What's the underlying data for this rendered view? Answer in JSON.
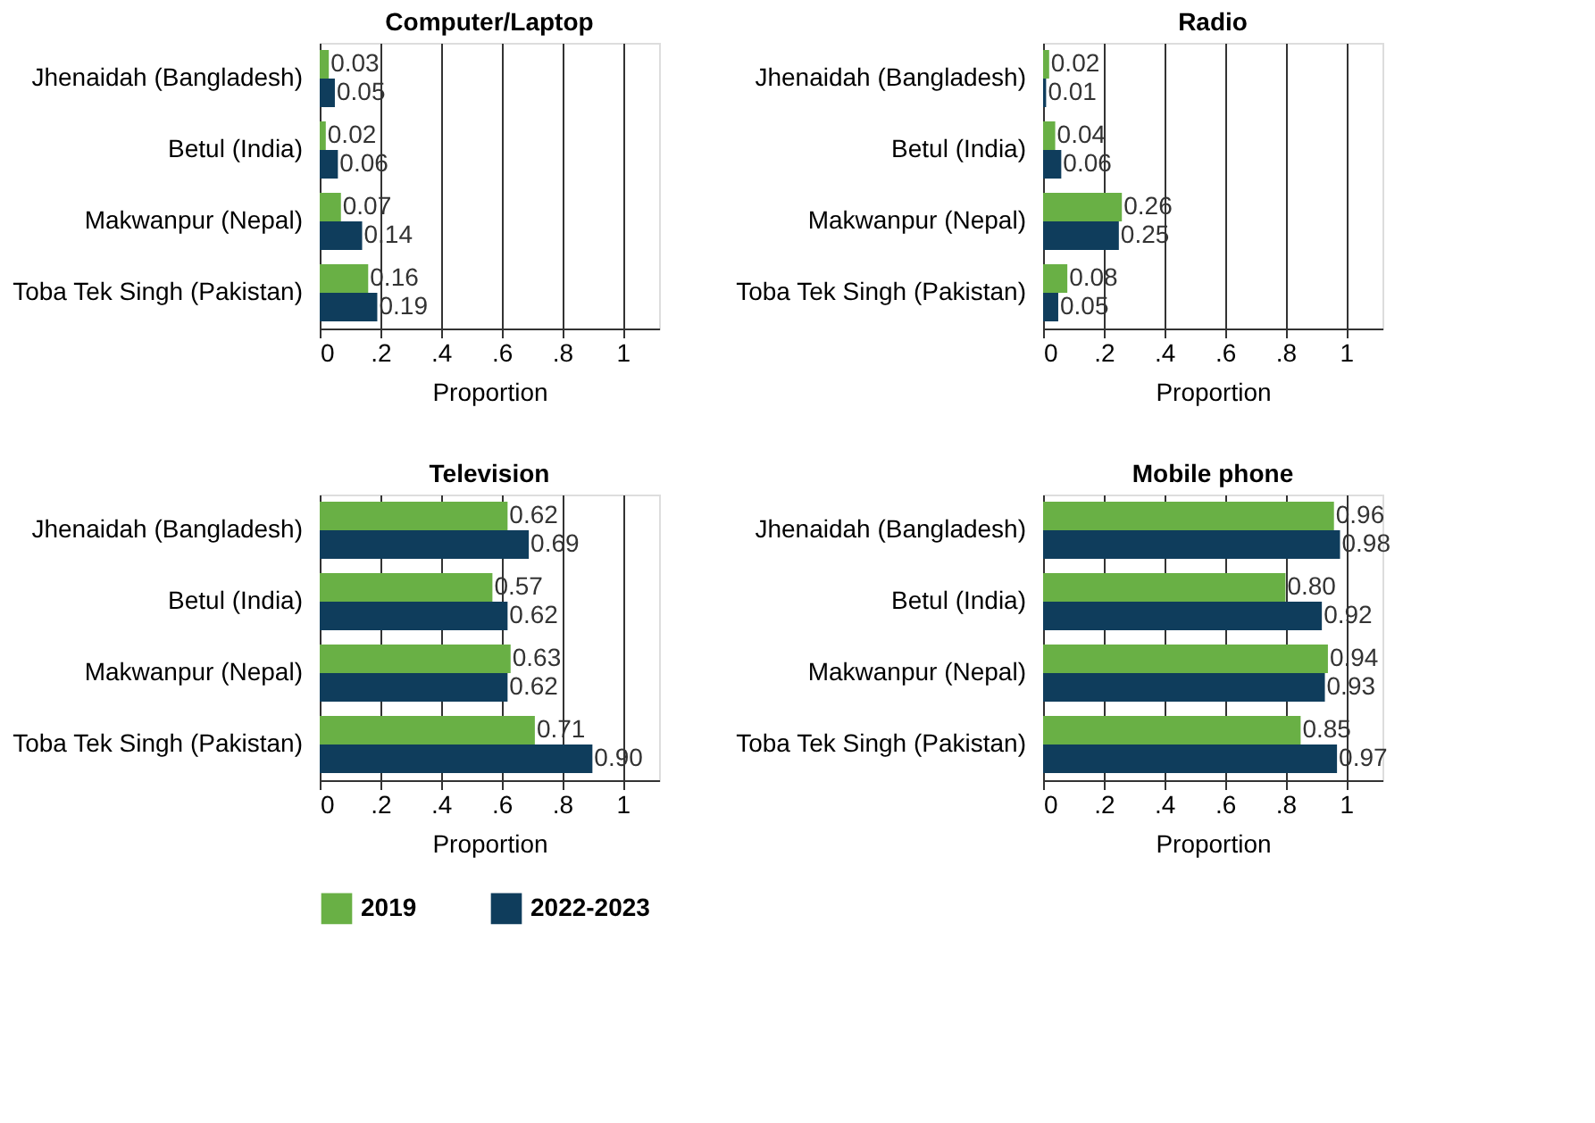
{
  "chart_data": [
    {
      "type": "bar",
      "orientation": "horizontal",
      "title": "Computer/Laptop",
      "xlabel": "Proportion",
      "categories": [
        "Jhenaidah (Bangladesh)",
        "Betul (India)",
        "Makwanpur (Nepal)",
        "Toba Tek Singh (Pakistan)"
      ],
      "series": [
        {
          "name": "2019",
          "color": "#69b045",
          "values": [
            0.03,
            0.02,
            0.07,
            0.16
          ],
          "value_labels": [
            "0.03",
            "0.02",
            "0.07",
            "0.16"
          ]
        },
        {
          "name": "2022-2023",
          "color": "#0f3d5c",
          "values": [
            0.05,
            0.06,
            0.14,
            0.19
          ],
          "value_labels": [
            "0.05",
            "0.06",
            "0.14",
            "0.19"
          ]
        }
      ],
      "xlim": [
        0,
        1.12
      ],
      "xticks": [
        {
          "value": 0,
          "label": "0"
        },
        {
          "value": 0.2,
          "label": ".2"
        },
        {
          "value": 0.4,
          "label": ".4"
        },
        {
          "value": 0.6,
          "label": ".6"
        },
        {
          "value": 0.8,
          "label": ".8"
        },
        {
          "value": 1,
          "label": "1"
        }
      ],
      "grid": "x",
      "legend": "bottom"
    },
    {
      "type": "bar",
      "orientation": "horizontal",
      "title": "Radio",
      "xlabel": "Proportion",
      "categories": [
        "Jhenaidah (Bangladesh)",
        "Betul (India)",
        "Makwanpur (Nepal)",
        "Toba Tek Singh (Pakistan)"
      ],
      "series": [
        {
          "name": "2019",
          "color": "#69b045",
          "values": [
            0.02,
            0.04,
            0.26,
            0.08
          ],
          "value_labels": [
            "0.02",
            "0.04",
            "0.26",
            "0.08"
          ]
        },
        {
          "name": "2022-2023",
          "color": "#0f3d5c",
          "values": [
            0.01,
            0.06,
            0.25,
            0.05
          ],
          "value_labels": [
            "0.01",
            "0.06",
            "0.25",
            "0.05"
          ]
        }
      ],
      "xlim": [
        0,
        1.12
      ],
      "xticks": [
        {
          "value": 0,
          "label": "0"
        },
        {
          "value": 0.2,
          "label": ".2"
        },
        {
          "value": 0.4,
          "label": ".4"
        },
        {
          "value": 0.6,
          "label": ".6"
        },
        {
          "value": 0.8,
          "label": ".8"
        },
        {
          "value": 1,
          "label": "1"
        }
      ],
      "grid": "x",
      "legend": "bottom"
    },
    {
      "type": "bar",
      "orientation": "horizontal",
      "title": "Television",
      "xlabel": "Proportion",
      "categories": [
        "Jhenaidah (Bangladesh)",
        "Betul (India)",
        "Makwanpur (Nepal)",
        "Toba Tek Singh (Pakistan)"
      ],
      "series": [
        {
          "name": "2019",
          "color": "#69b045",
          "values": [
            0.62,
            0.57,
            0.63,
            0.71
          ],
          "value_labels": [
            "0.62",
            "0.57",
            "0.63",
            "0.71"
          ]
        },
        {
          "name": "2022-2023",
          "color": "#0f3d5c",
          "values": [
            0.69,
            0.62,
            0.62,
            0.9
          ],
          "value_labels": [
            "0.69",
            "0.62",
            "0.62",
            "0.90"
          ]
        }
      ],
      "xlim": [
        0,
        1.12
      ],
      "xticks": [
        {
          "value": 0,
          "label": "0"
        },
        {
          "value": 0.2,
          "label": ".2"
        },
        {
          "value": 0.4,
          "label": ".4"
        },
        {
          "value": 0.6,
          "label": ".6"
        },
        {
          "value": 0.8,
          "label": ".8"
        },
        {
          "value": 1,
          "label": "1"
        }
      ],
      "grid": "x",
      "legend": "bottom"
    },
    {
      "type": "bar",
      "orientation": "horizontal",
      "title": "Mobile phone",
      "xlabel": "Proportion",
      "categories": [
        "Jhenaidah (Bangladesh)",
        "Betul (India)",
        "Makwanpur (Nepal)",
        "Toba Tek Singh (Pakistan)"
      ],
      "series": [
        {
          "name": "2019",
          "color": "#69b045",
          "values": [
            0.96,
            0.8,
            0.94,
            0.85
          ],
          "value_labels": [
            "0.96",
            "0.80",
            "0.94",
            "0.85"
          ]
        },
        {
          "name": "2022-2023",
          "color": "#0f3d5c",
          "values": [
            0.98,
            0.92,
            0.93,
            0.97
          ],
          "value_labels": [
            "0.98",
            "0.92",
            "0.93",
            "0.97"
          ]
        }
      ],
      "xlim": [
        0,
        1.12
      ],
      "xticks": [
        {
          "value": 0,
          "label": "0"
        },
        {
          "value": 0.2,
          "label": ".2"
        },
        {
          "value": 0.4,
          "label": ".4"
        },
        {
          "value": 0.6,
          "label": ".6"
        },
        {
          "value": 0.8,
          "label": ".8"
        },
        {
          "value": 1,
          "label": "1"
        }
      ],
      "grid": "x",
      "legend": "bottom"
    }
  ]
}
